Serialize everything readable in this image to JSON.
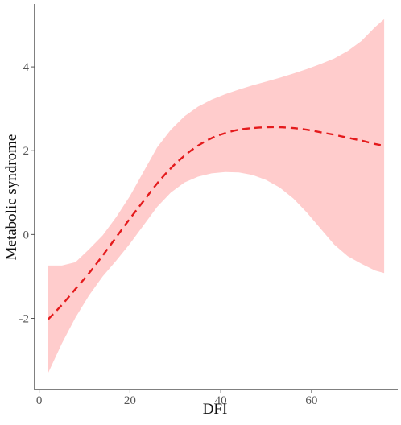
{
  "chart_data": {
    "type": "line",
    "title": "",
    "xlabel": "DFI",
    "ylabel": "Metabolic syndrome",
    "xlim": [
      -1,
      79
    ],
    "ylim": [
      -3.7,
      5.5
    ],
    "xticks": [
      0,
      20,
      40,
      60
    ],
    "yticks": [
      -2,
      0,
      2,
      4
    ],
    "grid": false,
    "legend": "none",
    "colors": {
      "line": "#e41a1c",
      "band": "#ffcccc"
    },
    "series": [
      {
        "style": "dashed",
        "x": [
          2,
          5,
          8,
          11,
          14,
          17,
          20,
          23,
          26,
          29,
          32,
          35,
          38,
          41,
          44,
          47,
          50,
          53,
          56,
          59,
          62,
          65,
          68,
          71,
          74,
          76
        ],
        "y": [
          -2.02,
          -1.68,
          -1.3,
          -0.92,
          -0.5,
          -0.06,
          0.38,
          0.8,
          1.22,
          1.58,
          1.88,
          2.12,
          2.3,
          2.42,
          2.5,
          2.54,
          2.56,
          2.56,
          2.54,
          2.5,
          2.44,
          2.38,
          2.31,
          2.24,
          2.16,
          2.12
        ],
        "ci_upper": [
          -0.74,
          -0.74,
          -0.66,
          -0.35,
          -0.02,
          0.42,
          0.92,
          1.5,
          2.08,
          2.5,
          2.82,
          3.05,
          3.22,
          3.35,
          3.46,
          3.56,
          3.65,
          3.74,
          3.84,
          3.95,
          4.07,
          4.2,
          4.38,
          4.62,
          4.95,
          5.14
        ],
        "ci_lower": [
          -3.3,
          -2.6,
          -1.98,
          -1.45,
          -1.0,
          -0.62,
          -0.22,
          0.22,
          0.66,
          1.0,
          1.24,
          1.38,
          1.46,
          1.49,
          1.48,
          1.42,
          1.3,
          1.12,
          0.86,
          0.52,
          0.14,
          -0.24,
          -0.52,
          -0.7,
          -0.86,
          -0.92
        ]
      }
    ]
  }
}
